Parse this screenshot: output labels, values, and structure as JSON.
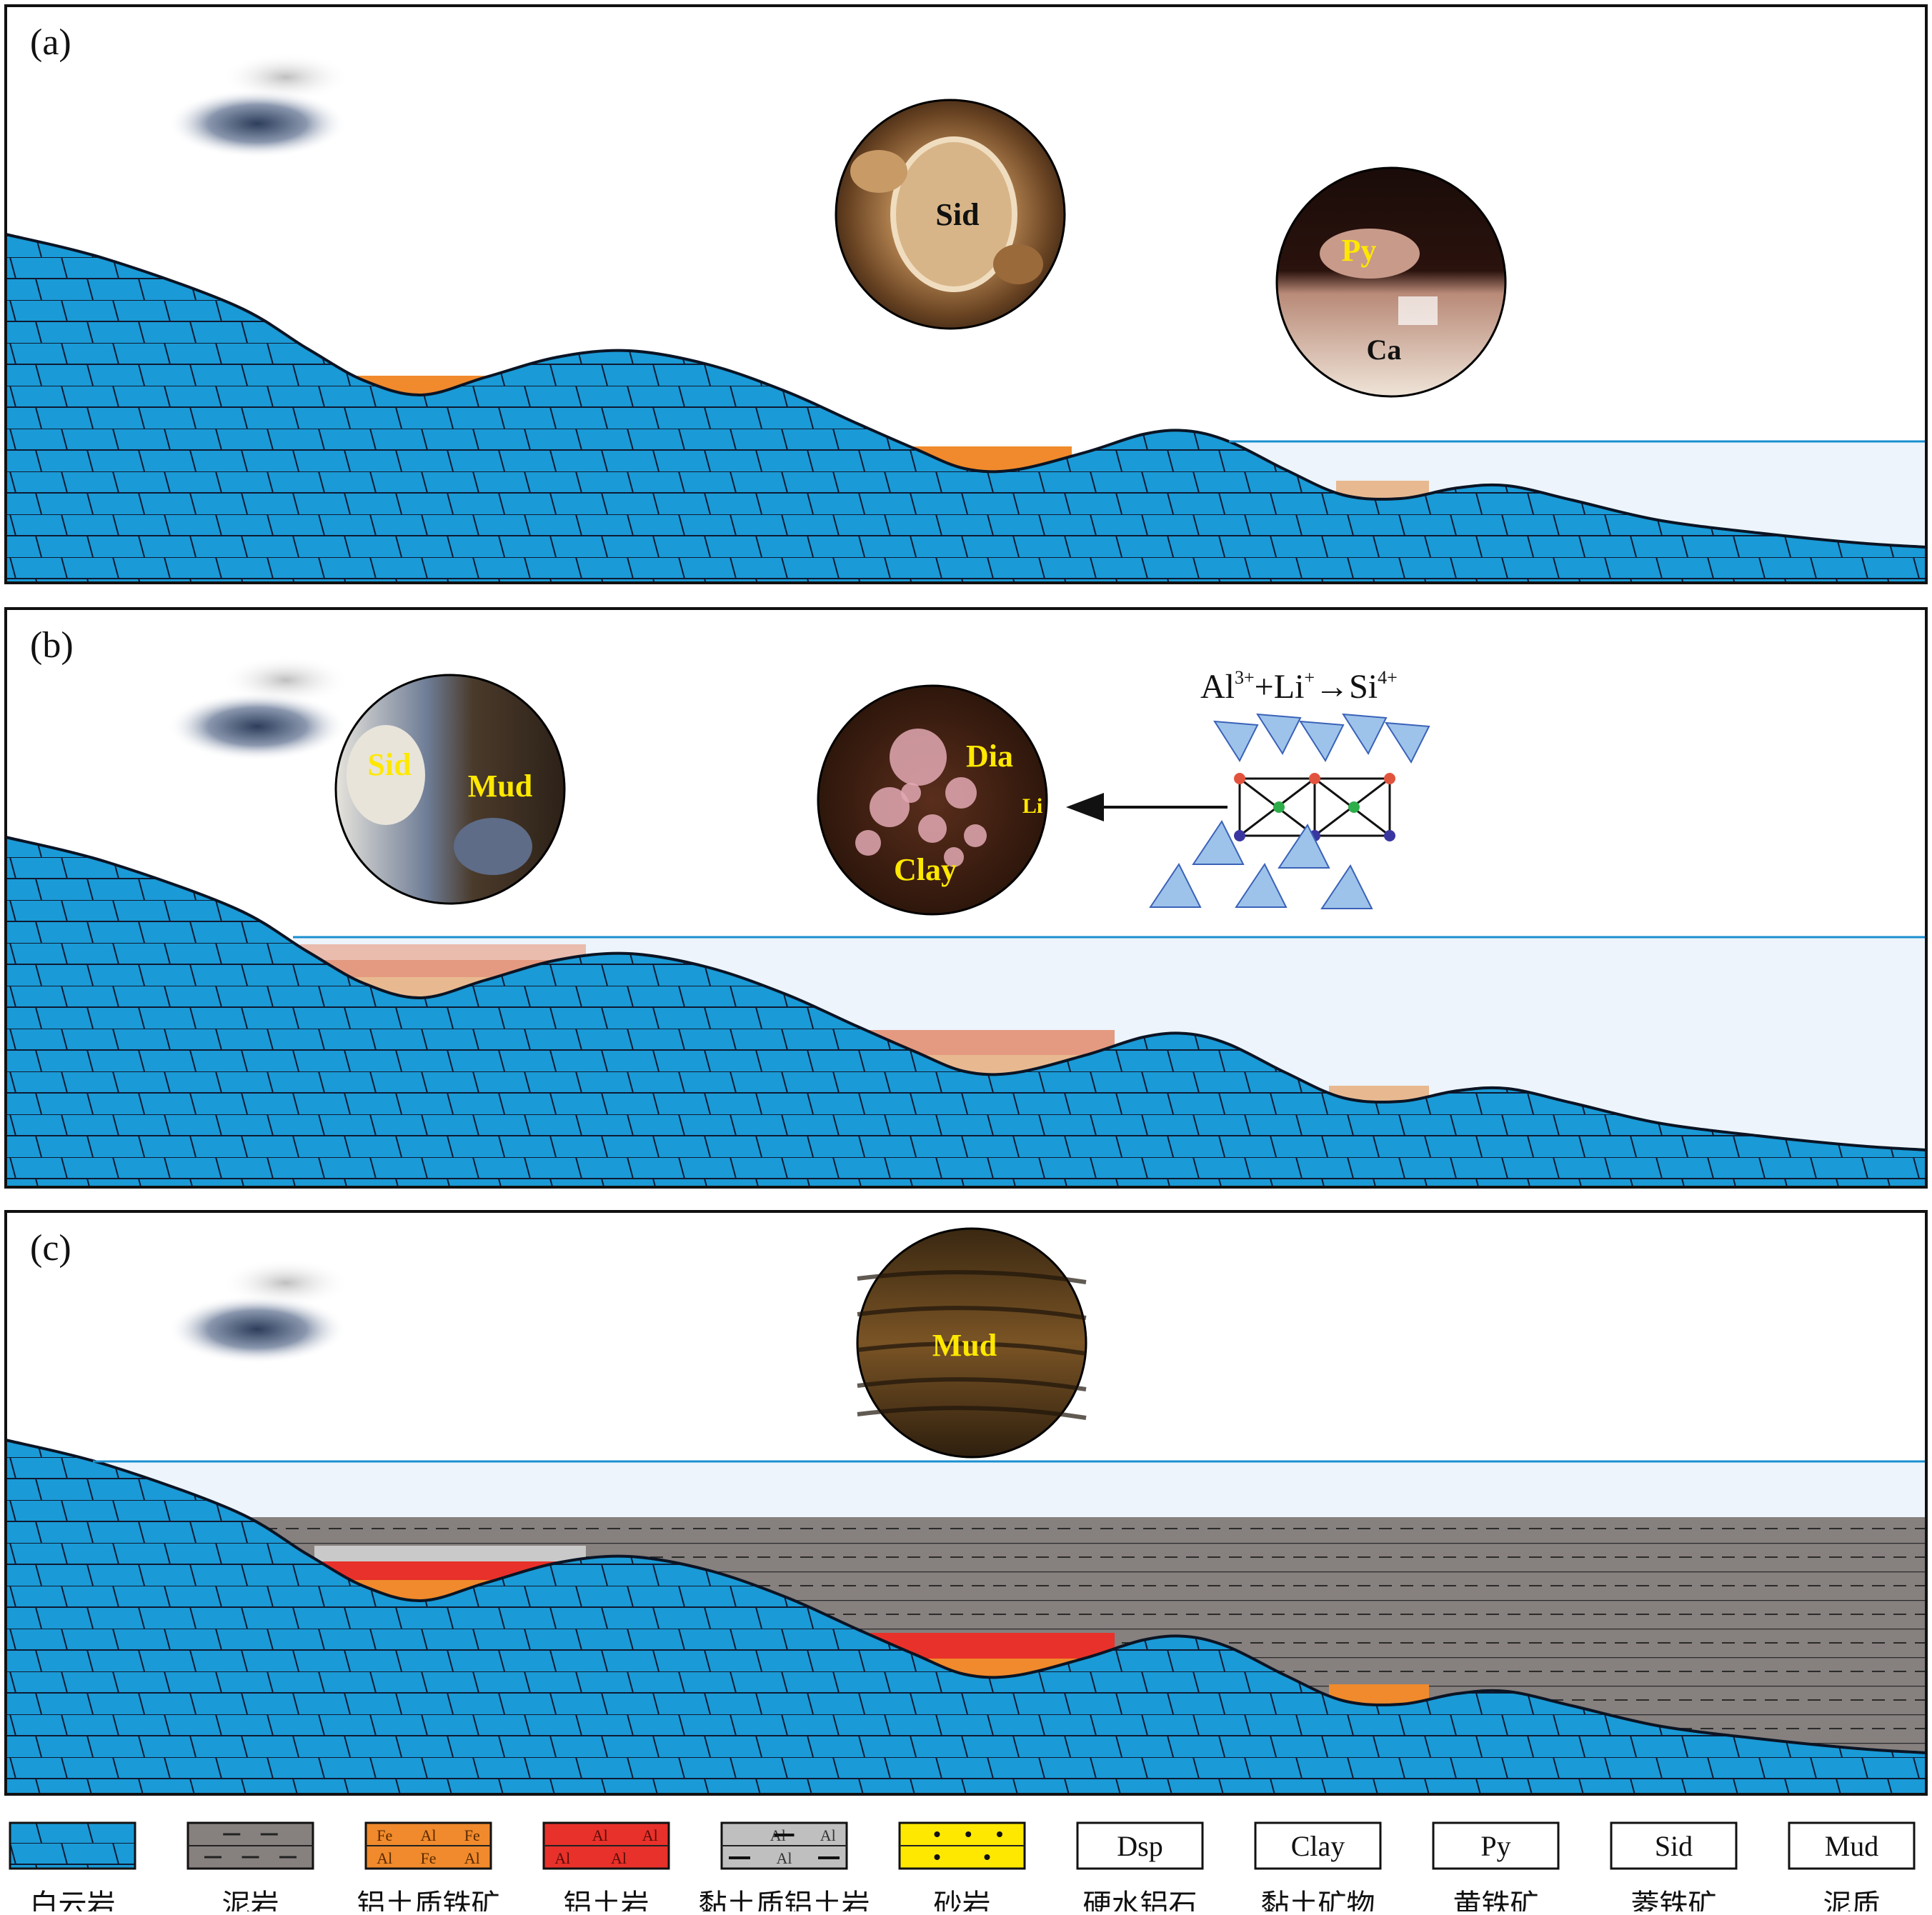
{
  "panels": [
    {
      "label": "(a)",
      "micrographs": [
        {
          "labels": [
            {
              "text": "Sid",
              "color": "#111111"
            }
          ]
        },
        {
          "labels": [
            {
              "text": "Py",
              "color": "#ffe800"
            },
            {
              "text": "Ca",
              "color": "#111111"
            }
          ]
        }
      ]
    },
    {
      "label": "(b)",
      "micrographs": [
        {
          "labels": [
            {
              "text": "Sid",
              "color": "#ffe800"
            },
            {
              "text": "Mud",
              "color": "#ffe800"
            }
          ]
        },
        {
          "labels": [
            {
              "text": "Dia",
              "color": "#ffe800"
            },
            {
              "text": "Li",
              "color": "#ffe800"
            },
            {
              "text": "Clay",
              "color": "#ffe800"
            }
          ]
        }
      ],
      "equation": {
        "al": "Al",
        "al_sup": "3+",
        "plus": "+Li",
        "li_sup": "+",
        "arrow": "→Si",
        "si_sup": "4+"
      },
      "li_sup": "+"
    },
    {
      "label": "(c)",
      "micrographs": [
        {
          "labels": [
            {
              "text": "Mud",
              "color": "#ffe800"
            }
          ]
        }
      ]
    }
  ],
  "legend": [
    {
      "name": "白云岩",
      "pattern": "dolomite",
      "color": "#1a9ad6"
    },
    {
      "name": "泥岩",
      "pattern": "mudstone",
      "color": "#86807e"
    },
    {
      "name": "铝土质铁矿",
      "pattern": "bauxitic-iron",
      "color": "#f08a2c",
      "row1": [
        "Fe",
        "Al",
        "Fe"
      ],
      "row2": [
        "Al",
        "Fe",
        "Al"
      ]
    },
    {
      "name": "铝土岩",
      "pattern": "bauxite",
      "color": "#e8312a",
      "row1": [
        "Al",
        "Al"
      ],
      "row2": [
        "Al",
        "Al"
      ]
    },
    {
      "name": "黏土质铝土岩",
      "pattern": "clayey-bauxite",
      "color": "#bfbfbf",
      "row1": [
        "Al",
        "Al"
      ],
      "row2": [
        "Al"
      ]
    },
    {
      "name": "砂岩",
      "pattern": "sandstone",
      "color": "#ffe800"
    },
    {
      "name": "硬水铝石",
      "box": "Dsp"
    },
    {
      "name": "黏土矿物",
      "box": "Clay"
    },
    {
      "name": "黄铁矿",
      "box": "Py"
    },
    {
      "name": "菱铁矿",
      "box": "Sid"
    },
    {
      "name": "泥质",
      "box": "Mud"
    }
  ],
  "colors": {
    "dolomite": "#1a9ad6",
    "water": "#edf4fb",
    "waterline": "#1a8fd0",
    "iron_ore": "#f08a2c",
    "bauxite": "#e8312a",
    "clay_bauxite": "#c9c9c9",
    "mudstone": "#86807e",
    "tan": "#e8b990",
    "salmon": "#e49a80",
    "pink": "#e9bcae"
  }
}
